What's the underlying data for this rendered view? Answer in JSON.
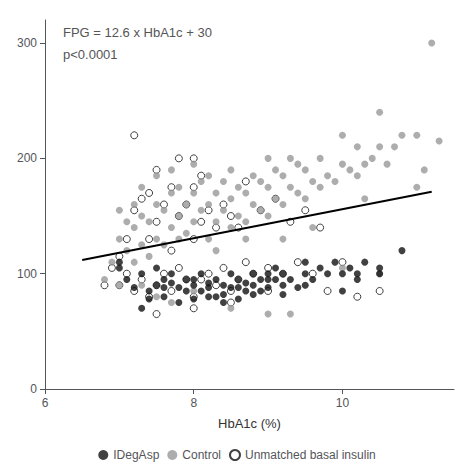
{
  "chart_data": {
    "type": "scatter",
    "xlabel": "HbA1c (%)",
    "annotations": [
      "FPG = 12.6 x HbA1c + 30",
      "p<0.0001"
    ],
    "xlim": [
      6,
      11.5
    ],
    "ylim": [
      0,
      320
    ],
    "xticks": [
      6,
      8,
      10
    ],
    "yticks": [
      0,
      100,
      200,
      300
    ],
    "grid": false,
    "legend": "bottom",
    "series": [
      {
        "name": "IDegAsp",
        "color": "#111111",
        "marker": "circle",
        "values": [
          [
            7.0,
            110
          ],
          [
            7.0,
            105
          ],
          [
            7.1,
            95
          ],
          [
            7.2,
            88
          ],
          [
            7.3,
            100
          ],
          [
            7.3,
            70
          ],
          [
            7.4,
            85
          ],
          [
            7.4,
            78
          ],
          [
            7.5,
            90
          ],
          [
            7.5,
            105
          ],
          [
            7.6,
            80
          ],
          [
            7.6,
            95
          ],
          [
            7.6,
            88
          ],
          [
            7.7,
            92
          ],
          [
            7.7,
            100
          ],
          [
            7.8,
            88
          ],
          [
            7.8,
            75
          ],
          [
            7.9,
            85
          ],
          [
            7.9,
            95
          ],
          [
            8.0,
            90
          ],
          [
            8.0,
            78
          ],
          [
            8.0,
            95
          ],
          [
            8.1,
            85
          ],
          [
            8.1,
            100
          ],
          [
            8.2,
            92
          ],
          [
            8.2,
            88
          ],
          [
            8.2,
            80
          ],
          [
            8.3,
            80
          ],
          [
            8.3,
            95
          ],
          [
            8.4,
            90
          ],
          [
            8.4,
            82
          ],
          [
            8.4,
            75
          ],
          [
            8.5,
            100
          ],
          [
            8.5,
            88
          ],
          [
            8.6,
            95
          ],
          [
            8.6,
            78
          ],
          [
            8.6,
            88
          ],
          [
            8.7,
            92
          ],
          [
            8.7,
            85
          ],
          [
            8.8,
            100
          ],
          [
            8.8,
            90
          ],
          [
            8.8,
            82
          ],
          [
            8.9,
            85
          ],
          [
            8.9,
            95
          ],
          [
            9.0,
            100
          ],
          [
            9.0,
            88
          ],
          [
            9.0,
            95
          ],
          [
            9.1,
            95
          ],
          [
            9.1,
            105
          ],
          [
            9.2,
            90
          ],
          [
            9.2,
            100
          ],
          [
            9.2,
            82
          ],
          [
            9.3,
            95
          ],
          [
            9.4,
            88
          ],
          [
            9.5,
            100
          ],
          [
            9.5,
            110
          ],
          [
            9.5,
            90
          ],
          [
            9.6,
            95
          ],
          [
            9.7,
            105
          ],
          [
            9.8,
            100
          ],
          [
            9.9,
            110
          ],
          [
            10.0,
            100
          ],
          [
            10.0,
            85
          ],
          [
            10.1,
            105
          ],
          [
            10.2,
            100
          ],
          [
            10.2,
            95
          ],
          [
            10.3,
            110
          ],
          [
            10.5,
            105
          ],
          [
            10.5,
            100
          ],
          [
            10.8,
            120
          ]
        ]
      },
      {
        "name": "Control",
        "color": "#999999",
        "marker": "circle",
        "values": [
          [
            6.8,
            95
          ],
          [
            6.9,
            110
          ],
          [
            7.0,
            130
          ],
          [
            7.0,
            155
          ],
          [
            7.0,
            90
          ],
          [
            7.1,
            120
          ],
          [
            7.1,
            145
          ],
          [
            7.2,
            110
          ],
          [
            7.2,
            140
          ],
          [
            7.2,
            160
          ],
          [
            7.3,
            125
          ],
          [
            7.3,
            150
          ],
          [
            7.3,
            175
          ],
          [
            7.3,
            90
          ],
          [
            7.4,
            115
          ],
          [
            7.4,
            145
          ],
          [
            7.5,
            130
          ],
          [
            7.5,
            160
          ],
          [
            7.5,
            185
          ],
          [
            7.5,
            80
          ],
          [
            7.6,
            125
          ],
          [
            7.6,
            155
          ],
          [
            7.7,
            140
          ],
          [
            7.7,
            170
          ],
          [
            7.7,
            190
          ],
          [
            7.7,
            75
          ],
          [
            7.8,
            150
          ],
          [
            7.8,
            175
          ],
          [
            7.8,
            130
          ],
          [
            7.9,
            135
          ],
          [
            7.9,
            160
          ],
          [
            8.0,
            145
          ],
          [
            8.0,
            170
          ],
          [
            8.0,
            195
          ],
          [
            8.0,
            85
          ],
          [
            8.1,
            155
          ],
          [
            8.1,
            180
          ],
          [
            8.2,
            130
          ],
          [
            8.2,
            160
          ],
          [
            8.2,
            185
          ],
          [
            8.3,
            145
          ],
          [
            8.3,
            170
          ],
          [
            8.3,
            120
          ],
          [
            8.4,
            155
          ],
          [
            8.4,
            180
          ],
          [
            8.5,
            140
          ],
          [
            8.5,
            165
          ],
          [
            8.5,
            190
          ],
          [
            8.5,
            70
          ],
          [
            8.6,
            150
          ],
          [
            8.6,
            175
          ],
          [
            8.7,
            145
          ],
          [
            8.7,
            170
          ],
          [
            8.7,
            130
          ],
          [
            8.8,
            160
          ],
          [
            8.8,
            185
          ],
          [
            8.9,
            155
          ],
          [
            8.9,
            180
          ],
          [
            9.0,
            150
          ],
          [
            9.0,
            175
          ],
          [
            9.0,
            200
          ],
          [
            9.0,
            65
          ],
          [
            9.1,
            165
          ],
          [
            9.1,
            190
          ],
          [
            9.2,
            160
          ],
          [
            9.2,
            185
          ],
          [
            9.2,
            130
          ],
          [
            9.3,
            175
          ],
          [
            9.3,
            200
          ],
          [
            9.3,
            65
          ],
          [
            9.4,
            170
          ],
          [
            9.4,
            195
          ],
          [
            9.5,
            165
          ],
          [
            9.5,
            190
          ],
          [
            9.6,
            180
          ],
          [
            9.6,
            140
          ],
          [
            9.7,
            175
          ],
          [
            9.7,
            200
          ],
          [
            9.8,
            185
          ],
          [
            9.9,
            180
          ],
          [
            10.0,
            195
          ],
          [
            10.0,
            220
          ],
          [
            10.0,
            105
          ],
          [
            10.1,
            190
          ],
          [
            10.2,
            185
          ],
          [
            10.2,
            210
          ],
          [
            10.3,
            195
          ],
          [
            10.3,
            165
          ],
          [
            10.4,
            200
          ],
          [
            10.5,
            210
          ],
          [
            10.5,
            240
          ],
          [
            10.5,
            100
          ],
          [
            10.6,
            195
          ],
          [
            10.7,
            210
          ],
          [
            10.8,
            220
          ],
          [
            11.0,
            175
          ],
          [
            11.0,
            220
          ],
          [
            11.1,
            190
          ],
          [
            11.2,
            300
          ],
          [
            11.3,
            215
          ]
        ]
      },
      {
        "name": "Unmatched basal insulin",
        "color": "#111111",
        "marker": "open_circle",
        "values": [
          [
            6.8,
            90
          ],
          [
            6.9,
            105
          ],
          [
            7.0,
            90
          ],
          [
            7.0,
            115
          ],
          [
            7.1,
            100
          ],
          [
            7.1,
            130
          ],
          [
            7.2,
            85
          ],
          [
            7.2,
            155
          ],
          [
            7.2,
            220
          ],
          [
            7.3,
            95
          ],
          [
            7.3,
            165
          ],
          [
            7.4,
            80
          ],
          [
            7.4,
            130
          ],
          [
            7.4,
            170
          ],
          [
            7.5,
            90
          ],
          [
            7.5,
            145
          ],
          [
            7.5,
            190
          ],
          [
            7.5,
            65
          ],
          [
            7.6,
            100
          ],
          [
            7.6,
            160
          ],
          [
            7.7,
            85
          ],
          [
            7.7,
            120
          ],
          [
            7.7,
            175
          ],
          [
            7.8,
            105
          ],
          [
            7.8,
            150
          ],
          [
            7.8,
            200
          ],
          [
            7.9,
            95
          ],
          [
            7.9,
            160
          ],
          [
            8.0,
            80
          ],
          [
            8.0,
            130
          ],
          [
            8.0,
            175
          ],
          [
            8.0,
            200
          ],
          [
            8.0,
            70
          ],
          [
            8.1,
            95
          ],
          [
            8.1,
            145
          ],
          [
            8.1,
            185
          ],
          [
            8.2,
            100
          ],
          [
            8.2,
            155
          ],
          [
            8.3,
            90
          ],
          [
            8.3,
            140
          ],
          [
            8.4,
            105
          ],
          [
            8.4,
            160
          ],
          [
            8.5,
            85
          ],
          [
            8.5,
            150
          ],
          [
            8.5,
            75
          ],
          [
            8.6,
            95
          ],
          [
            8.6,
            140
          ],
          [
            8.7,
            110
          ],
          [
            8.7,
            180
          ],
          [
            8.8,
            100
          ],
          [
            8.9,
            155
          ],
          [
            9.0,
            105
          ],
          [
            9.0,
            85
          ],
          [
            9.1,
            165
          ],
          [
            9.2,
            100
          ],
          [
            9.3,
            145
          ],
          [
            9.4,
            110
          ],
          [
            9.5,
            155
          ],
          [
            9.6,
            100
          ],
          [
            9.7,
            140
          ],
          [
            9.8,
            85
          ],
          [
            10.0,
            110
          ],
          [
            10.2,
            80
          ],
          [
            10.5,
            85
          ]
        ]
      },
      {
        "type": "line",
        "color": "#000000",
        "line_style": "solid",
        "values": [
          [
            6.5,
            111.9
          ],
          [
            11.2,
            171.12
          ]
        ]
      }
    ]
  }
}
